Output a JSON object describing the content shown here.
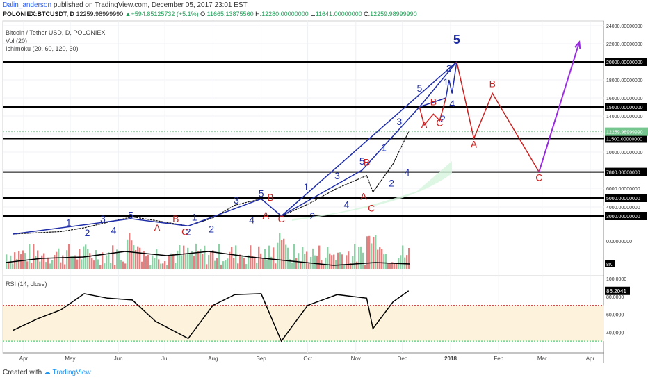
{
  "header": {
    "author": "Dalin_anderson",
    "published": "published on TradingView.com, December 05, 2017 23:01 EST",
    "symbol": "POLONIEX:BTCUSDT, D",
    "last": "12259.98999990",
    "change": "+594.85125732 (+5.1%)",
    "open_label": "O:",
    "open": "11665.13875560",
    "high_label": "H:",
    "high": "12280.00000000",
    "low_label": "L:",
    "low": "11641.00000000",
    "close_label": "C:",
    "close": "12259.98999990"
  },
  "legend": {
    "title": "Bitcoin / Tether USD, D, POLONIEX",
    "vol": "Vol (20)",
    "ichimoku": "Ichimoku (20, 60, 120, 30)",
    "rsi": "RSI (14, close)"
  },
  "footer": {
    "created_with": "Created with",
    "brand": "TradingView"
  },
  "colors": {
    "blue_wave": "#1f2ea8",
    "red_wave": "#cc1f1f",
    "purple_arrow": "#9a2be2",
    "green_level": "#22c55e",
    "rsi_overbought": "#d32f2f"
  },
  "chart_data": [
    {
      "type": "line",
      "title": "Bitcoin / Tether USD, D, POLONIEX",
      "price_axis_ticks": [
        "24000.00000000",
        "22000.00000000",
        "20000.00000000",
        "18000.00000000",
        "16000.00000000",
        "15000.00000000",
        "14000.00000000",
        "12000.00000000",
        "11500.00000000",
        "10000.00000000",
        "8000.00000000",
        "7800.00000000",
        "6000.00000000",
        "5000.00000000",
        "4000.00000000",
        "3000.00000000"
      ],
      "price_ticks_values": [
        24000,
        22000,
        20000,
        18000,
        16000,
        15000,
        14000,
        12000,
        11500,
        10000,
        8000,
        7800,
        6000,
        5000,
        4000,
        3000
      ],
      "highlighted_levels": [
        20000,
        15000,
        11500,
        7800,
        5000,
        3000
      ],
      "current_price_label": "12259.98999990",
      "time_axis_labels": [
        "Apr",
        "May",
        "Jun",
        "Jul",
        "Aug",
        "Sep",
        "Oct",
        "Nov",
        "Dec",
        "2018",
        "Feb",
        "Mar",
        "Apr"
      ],
      "price_series": [
        {
          "x": "2017-03-25",
          "y": 1000
        },
        {
          "x": "2017-04-10",
          "y": 1150
        },
        {
          "x": "2017-04-25",
          "y": 1280
        },
        {
          "x": "2017-05-10",
          "y": 1700
        },
        {
          "x": "2017-05-25",
          "y": 2300
        },
        {
          "x": "2017-06-10",
          "y": 2900
        },
        {
          "x": "2017-06-25",
          "y": 2500
        },
        {
          "x": "2017-07-16",
          "y": 1900
        },
        {
          "x": "2017-08-01",
          "y": 2800
        },
        {
          "x": "2017-08-15",
          "y": 4200
        },
        {
          "x": "2017-09-01",
          "y": 4900
        },
        {
          "x": "2017-09-14",
          "y": 3000
        },
        {
          "x": "2017-10-01",
          "y": 4300
        },
        {
          "x": "2017-10-20",
          "y": 6000
        },
        {
          "x": "2017-11-08",
          "y": 7400
        },
        {
          "x": "2017-11-12",
          "y": 5600
        },
        {
          "x": "2017-11-25",
          "y": 8700
        },
        {
          "x": "2017-12-05",
          "y": 12260
        }
      ],
      "wave_labels_blue": [
        {
          "t": "1",
          "x": "2017-04-30",
          "y": 1900
        },
        {
          "t": "2",
          "x": "2017-05-12",
          "y": 780
        },
        {
          "t": "3",
          "x": "2017-05-22",
          "y": 2300
        },
        {
          "t": "4",
          "x": "2017-05-29",
          "y": 1050
        },
        {
          "t": "5",
          "x": "2017-06-09",
          "y": 2750
        },
        {
          "t": "1",
          "x": "2017-07-20",
          "y": 2500
        },
        {
          "t": "2",
          "x": "2017-07-16",
          "y": 900
        },
        {
          "t": "2",
          "x": "2017-07-31",
          "y": 1200
        },
        {
          "t": "3",
          "x": "2017-08-16",
          "y": 4400
        },
        {
          "t": "4",
          "x": "2017-08-26",
          "y": 2200
        },
        {
          "t": "5",
          "x": "2017-09-01",
          "y": 5100
        },
        {
          "t": "1",
          "x": "2017-09-30",
          "y": 5800
        },
        {
          "t": "2",
          "x": "2017-10-04",
          "y": 2600
        },
        {
          "t": "3",
          "x": "2017-10-20",
          "y": 7000
        },
        {
          "t": "4",
          "x": "2017-10-26",
          "y": 3900
        },
        {
          "t": "5",
          "x": "2017-11-05",
          "y": 8600
        },
        {
          "t": "1",
          "x": "2017-11-19",
          "y": 10100
        },
        {
          "t": "2",
          "x": "2017-11-24",
          "y": 6200
        },
        {
          "t": "3",
          "x": "2017-11-29",
          "y": 13000
        },
        {
          "t": "4",
          "x": "2017-12-04",
          "y": 7400
        },
        {
          "t": "5",
          "x": "2017-12-12",
          "y": 16700
        },
        {
          "t": "1",
          "x": "2017-12-29",
          "y": 17400
        },
        {
          "t": "2",
          "x": "2017-12-27",
          "y": 13300
        },
        {
          "t": "3",
          "x": "2017-12-31",
          "y": 18900
        },
        {
          "t": "4",
          "x": "2018-01-02",
          "y": 15000
        },
        {
          "t": "5",
          "x": "2018-01-05",
          "y": 22000
        }
      ],
      "wave_labels_red": [
        {
          "t": "B",
          "x": "2017-07-08",
          "y": 2300
        },
        {
          "t": "A",
          "x": "2017-06-26",
          "y": 1300
        },
        {
          "t": "C",
          "x": "2017-07-14",
          "y": 900
        },
        {
          "t": "B",
          "x": "2017-09-07",
          "y": 4700
        },
        {
          "t": "A",
          "x": "2017-09-04",
          "y": 2700
        },
        {
          "t": "C",
          "x": "2017-09-14",
          "y": 2300
        },
        {
          "t": "B",
          "x": "2017-11-08",
          "y": 8500
        },
        {
          "t": "A",
          "x": "2017-11-06",
          "y": 4800
        },
        {
          "t": "C",
          "x": "2017-11-11",
          "y": 3500
        },
        {
          "t": "A",
          "x": "2017-12-15",
          "y": 12600
        },
        {
          "t": "B",
          "x": "2017-12-21",
          "y": 15200
        },
        {
          "t": "C",
          "x": "2017-12-25",
          "y": 12900
        },
        {
          "t": "A",
          "x": "2018-01-16",
          "y": 10500
        },
        {
          "t": "B",
          "x": "2018-01-28",
          "y": 17200
        },
        {
          "t": "C",
          "x": "2018-02-27",
          "y": 6800
        }
      ],
      "projection_red": [
        {
          "x": "2018-01-05",
          "y": 20000
        },
        {
          "x": "2018-01-16",
          "y": 11500
        },
        {
          "x": "2018-01-28",
          "y": 16500
        },
        {
          "x": "2018-02-27",
          "y": 7800
        }
      ],
      "projection_purple": [
        {
          "x": "2018-02-27",
          "y": 7800
        },
        {
          "x": "2018-03-25",
          "y": 22200
        }
      ]
    },
    {
      "type": "area",
      "title": "Vol (20)",
      "ticks": [
        "0.00000000",
        "8K",
        "2K"
      ]
    },
    {
      "type": "line",
      "title": "RSI (14, close)",
      "current_value": "86.2041",
      "ticks": [
        "100.0000",
        "80.0000",
        "60.0000",
        "40.0000"
      ],
      "ylim": [
        20,
        100
      ],
      "overbought": 70,
      "oversold": 30,
      "series": [
        {
          "x": "2017-03-25",
          "y": 42
        },
        {
          "x": "2017-04-10",
          "y": 55
        },
        {
          "x": "2017-04-25",
          "y": 65
        },
        {
          "x": "2017-05-10",
          "y": 83
        },
        {
          "x": "2017-05-25",
          "y": 78
        },
        {
          "x": "2017-06-10",
          "y": 76
        },
        {
          "x": "2017-06-25",
          "y": 52
        },
        {
          "x": "2017-07-16",
          "y": 33
        },
        {
          "x": "2017-08-01",
          "y": 70
        },
        {
          "x": "2017-08-15",
          "y": 82
        },
        {
          "x": "2017-09-01",
          "y": 83
        },
        {
          "x": "2017-09-14",
          "y": 30
        },
        {
          "x": "2017-10-01",
          "y": 70
        },
        {
          "x": "2017-10-20",
          "y": 82
        },
        {
          "x": "2017-11-08",
          "y": 78
        },
        {
          "x": "2017-11-12",
          "y": 44
        },
        {
          "x": "2017-11-25",
          "y": 74
        },
        {
          "x": "2017-12-05",
          "y": 86.2
        }
      ]
    }
  ]
}
